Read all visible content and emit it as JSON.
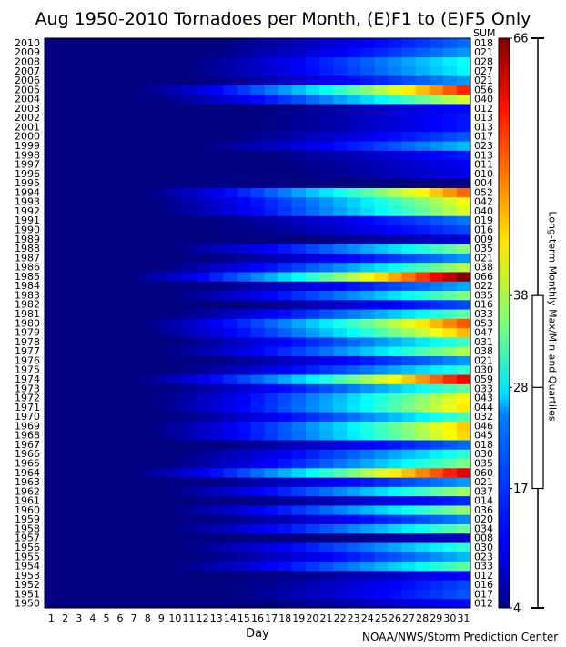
{
  "title": "Aug 1950-2010 Tornadoes per Month, (E)F1 to (E)F5 Only",
  "credit": "NOAA/NWS/Storm Prediction Center",
  "chart_data": {
    "type": "heatmap",
    "title": "Aug 1950-2010 Tornadoes per Month, (E)F1 to (E)F5 Only",
    "xlabel": "Day",
    "ylabel": "",
    "x": [
      1,
      2,
      3,
      4,
      5,
      6,
      7,
      8,
      9,
      10,
      11,
      12,
      13,
      14,
      15,
      16,
      17,
      18,
      19,
      20,
      21,
      22,
      23,
      24,
      25,
      26,
      27,
      28,
      29,
      30,
      31
    ],
    "sum_label": "SUM",
    "colormap": "jet",
    "color_range": [
      4,
      66
    ],
    "colorbar": {
      "ticks": [
        4,
        17,
        28,
        38,
        66
      ],
      "tick_labels": [
        "4",
        "17",
        "28",
        "38",
        "66"
      ],
      "label": "Long-term Monthly Max/Min and Quartiles",
      "quartile_box": [
        17,
        38
      ],
      "median": 28,
      "whisker": [
        4,
        66
      ]
    },
    "years": [
      1950,
      1951,
      1952,
      1953,
      1954,
      1955,
      1956,
      1957,
      1958,
      1959,
      1960,
      1961,
      1962,
      1963,
      1964,
      1965,
      1966,
      1967,
      1968,
      1969,
      1970,
      1971,
      1972,
      1973,
      1974,
      1975,
      1976,
      1977,
      1978,
      1979,
      1980,
      1981,
      1982,
      1983,
      1984,
      1985,
      1986,
      1987,
      1988,
      1989,
      1990,
      1991,
      1992,
      1993,
      1994,
      1995,
      1996,
      1997,
      1998,
      1999,
      2000,
      2001,
      2002,
      2003,
      2004,
      2005,
      2006,
      2007,
      2008,
      2009,
      2010
    ],
    "sums": [
      "012",
      "017",
      "016",
      "012",
      "033",
      "023",
      "030",
      "008",
      "034",
      "020",
      "036",
      "014",
      "037",
      "021",
      "060",
      "035",
      "030",
      "018",
      "045",
      "046",
      "032",
      "044",
      "043",
      "033",
      "059",
      "030",
      "021",
      "038",
      "031",
      "047",
      "053",
      "033",
      "016",
      "035",
      "022",
      "066",
      "038",
      "021",
      "035",
      "009",
      "016",
      "019",
      "040",
      "042",
      "052",
      "004",
      "010",
      "011",
      "013",
      "023",
      "017",
      "013",
      "013",
      "012",
      "040",
      "056",
      "021",
      "027",
      "028",
      "021",
      "018"
    ]
  }
}
